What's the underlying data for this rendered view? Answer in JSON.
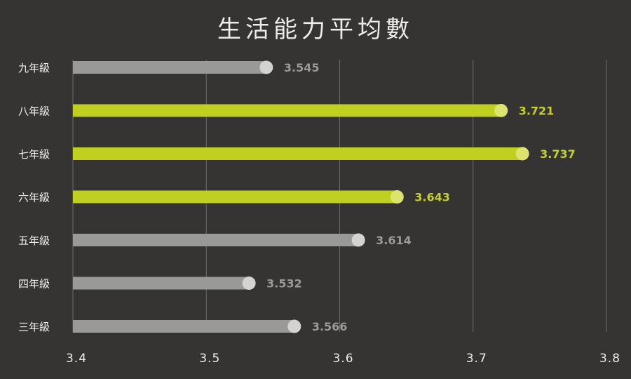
{
  "chart_data": {
    "type": "bar",
    "orientation": "horizontal",
    "title": "生活能力平均數",
    "categories": [
      "九年級",
      "八年級",
      "七年級",
      "六年級",
      "五年級",
      "四年級",
      "三年級"
    ],
    "values": [
      3.545,
      3.721,
      3.737,
      3.643,
      3.614,
      3.532,
      3.566
    ],
    "value_labels": [
      "3.545",
      "3.721",
      "3.737",
      "3.643",
      "3.614",
      "3.532",
      "3.566"
    ],
    "highlighted": [
      false,
      true,
      true,
      true,
      false,
      false,
      false
    ],
    "xlim": [
      3.4,
      3.8
    ],
    "xticks": [
      "3.4",
      "3.5",
      "3.6",
      "3.7",
      "3.8"
    ],
    "xtick_values": [
      3.4,
      3.5,
      3.6,
      3.7,
      3.8
    ],
    "xlabel": "",
    "ylabel": "",
    "grid": "vertical",
    "legend": "none",
    "colors": {
      "background": "#363432",
      "highlight_bar": "#bfd020",
      "highlight_dot": "#dde46e",
      "highlight_label": "#c3d12a",
      "normal_bar": "#999a98",
      "normal_dot": "#d3d3d1",
      "normal_label": "#9a9a98",
      "grid": "#6b6a68",
      "text": "#ededed"
    }
  }
}
